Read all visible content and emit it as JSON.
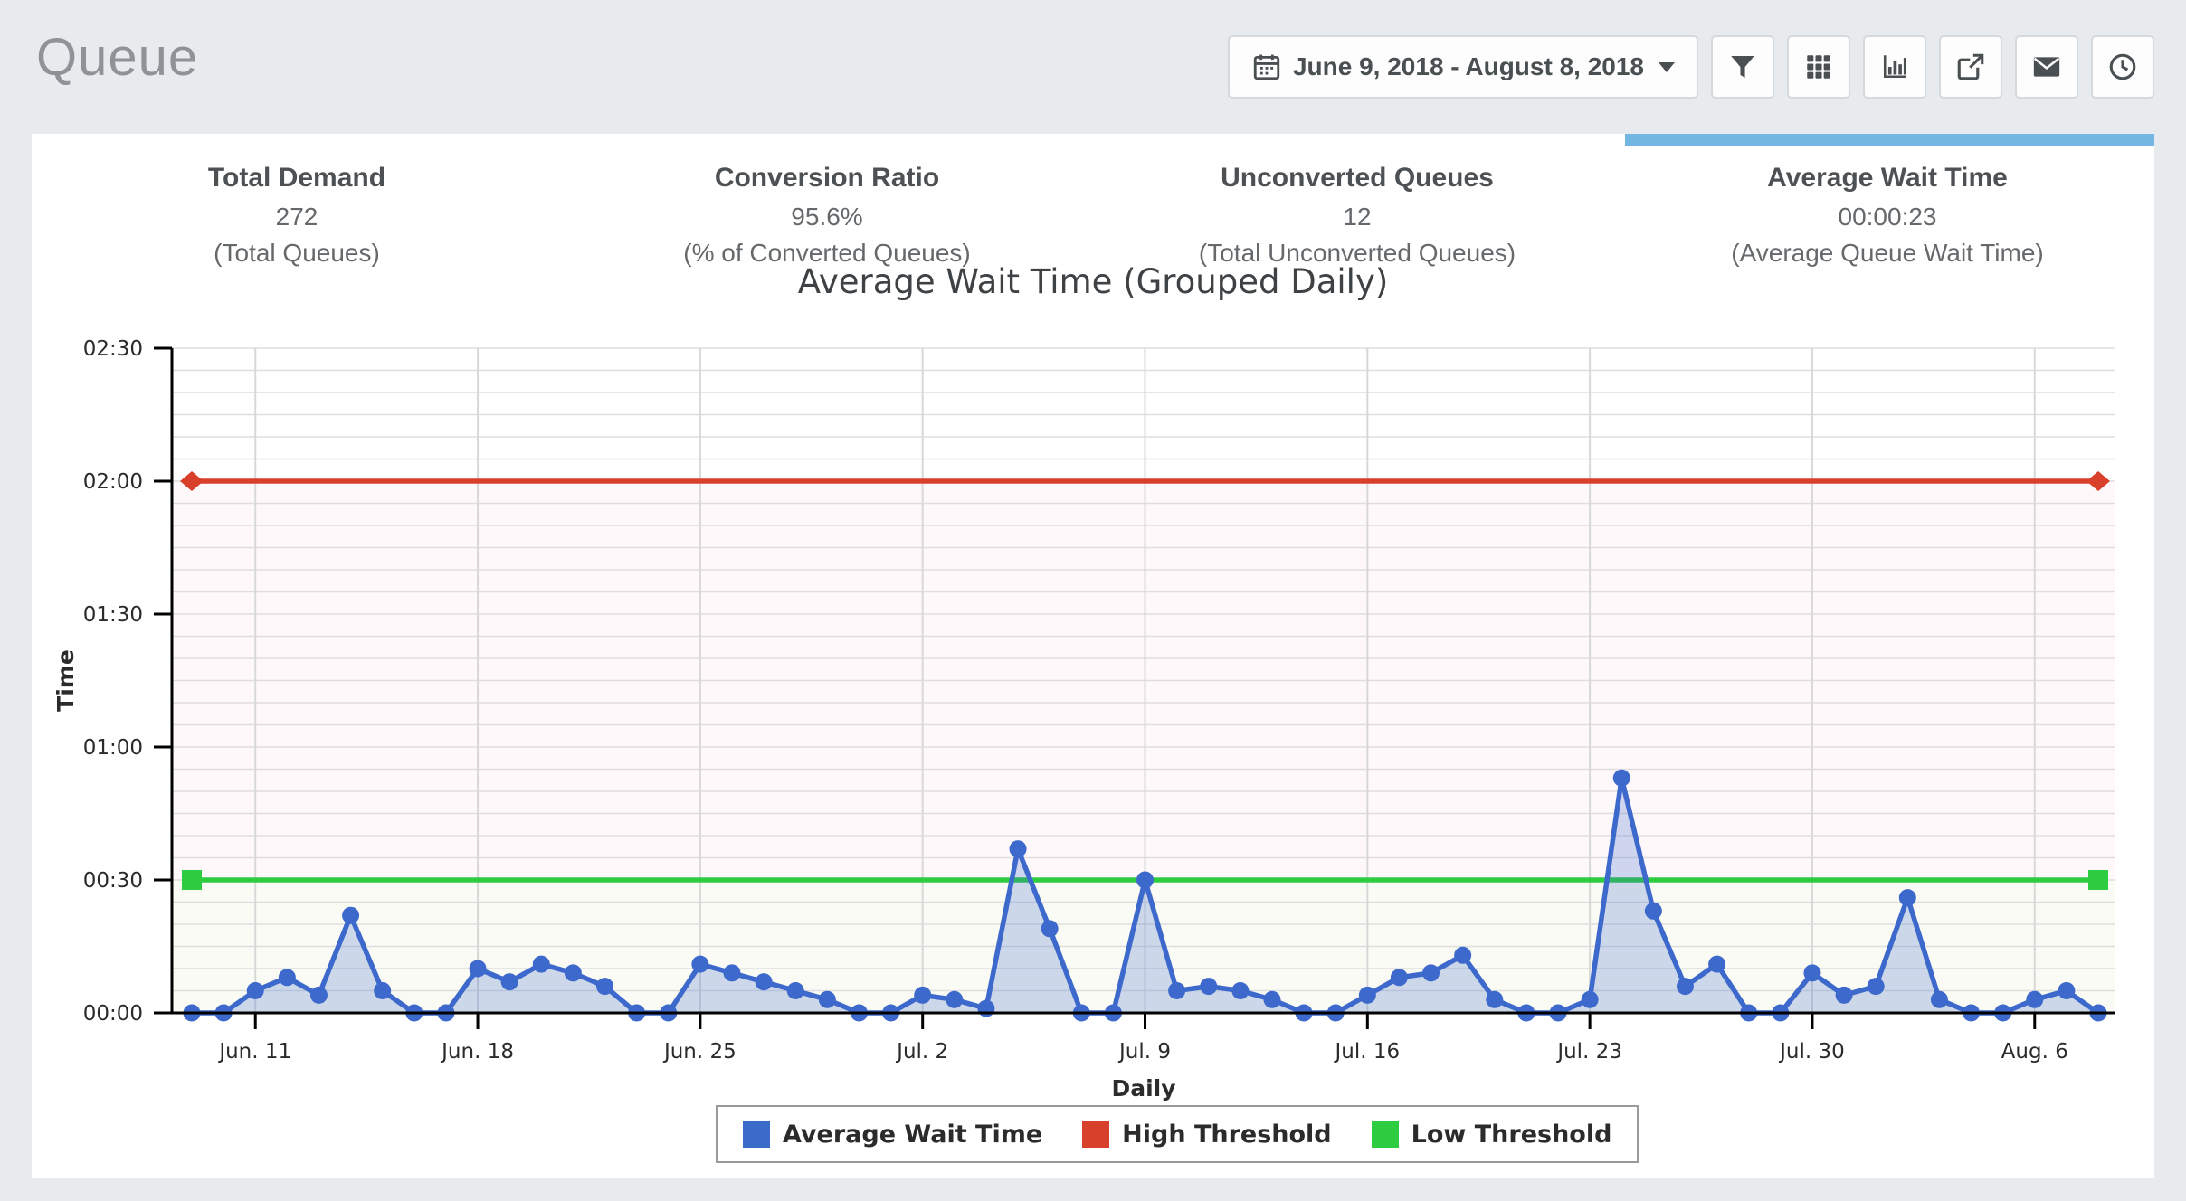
{
  "header": {
    "title": "Queue"
  },
  "toolbar": {
    "date_range": {
      "label": "June 9, 2018 - August 8, 2018"
    },
    "icons": [
      "calendar",
      "caret-down",
      "filter",
      "grid",
      "bar-chart",
      "share",
      "envelope",
      "clock"
    ]
  },
  "stats": [
    {
      "title": "Total Demand",
      "value": "272",
      "subtitle": "(Total Queues)"
    },
    {
      "title": "Conversion Ratio",
      "value": "95.6%",
      "subtitle": "(% of Converted Queues)"
    },
    {
      "title": "Unconverted Queues",
      "value": "12",
      "subtitle": "(Total Unconverted Queues)"
    },
    {
      "title": "Average Wait Time",
      "value": "00:00:23",
      "subtitle": "(Average Queue Wait Time)"
    }
  ],
  "selected_metric": "Average Wait Time",
  "selected_metric_indicator_color": "#74b6e2",
  "chart_data": {
    "type": "area",
    "title": "Average Wait Time (Grouped Daily)",
    "xlabel": "Daily",
    "ylabel": "Time",
    "y_unit": "mm:ss (seconds)",
    "ylim_seconds": [
      0,
      150
    ],
    "y_tick_seconds": [
      0,
      30,
      60,
      90,
      120,
      150
    ],
    "y_tick_labels": [
      "00:00",
      "00:30",
      "01:00",
      "01:30",
      "02:00",
      "02:30"
    ],
    "minor_grid_step_seconds": 5,
    "grid": true,
    "legend_position": "bottom-center",
    "x_start_date": "2018-06-09",
    "x_end_date": "2018-08-08",
    "x_ticks": [
      {
        "label": "Jun. 11",
        "day_index": 2
      },
      {
        "label": "Jun. 18",
        "day_index": 9
      },
      {
        "label": "Jun. 25",
        "day_index": 16
      },
      {
        "label": "Jul. 2",
        "day_index": 23
      },
      {
        "label": "Jul. 9",
        "day_index": 30
      },
      {
        "label": "Jul. 16",
        "day_index": 37
      },
      {
        "label": "Jul. 23",
        "day_index": 44
      },
      {
        "label": "Jul. 30",
        "day_index": 51
      },
      {
        "label": "Aug. 6",
        "day_index": 58
      }
    ],
    "series": {
      "name": "Average Wait Time",
      "color": "#3c69cb",
      "fill_opacity": 0.24,
      "marker": "circle",
      "values_seconds": [
        0,
        0,
        5,
        8,
        4,
        22,
        5,
        0,
        0,
        10,
        7,
        11,
        9,
        6,
        0,
        0,
        11,
        9,
        7,
        5,
        3,
        0,
        0,
        4,
        3,
        1,
        37,
        19,
        0,
        0,
        30,
        5,
        6,
        5,
        3,
        0,
        0,
        4,
        8,
        9,
        13,
        3,
        0,
        0,
        3,
        53,
        23,
        6,
        11,
        0,
        0,
        9,
        4,
        6,
        26,
        3,
        0,
        0,
        3,
        5,
        0
      ]
    },
    "thresholds": [
      {
        "name": "High Threshold",
        "seconds": 120,
        "color": "#d8402c",
        "marker": "diamond"
      },
      {
        "name": "Low Threshold",
        "seconds": 30,
        "color": "#2ecc40",
        "marker": "square"
      }
    ],
    "bands": [
      {
        "from_seconds": 30,
        "to_seconds": 120,
        "color": "#fef8fa"
      },
      {
        "from_seconds": 0,
        "to_seconds": 30,
        "color": "#fafbf4"
      }
    ],
    "legend": [
      {
        "label": "Average Wait Time",
        "color": "#3a6bc8"
      },
      {
        "label": "High Threshold",
        "color": "#d8402c"
      },
      {
        "label": "Low Threshold",
        "color": "#2ecc40"
      }
    ]
  }
}
